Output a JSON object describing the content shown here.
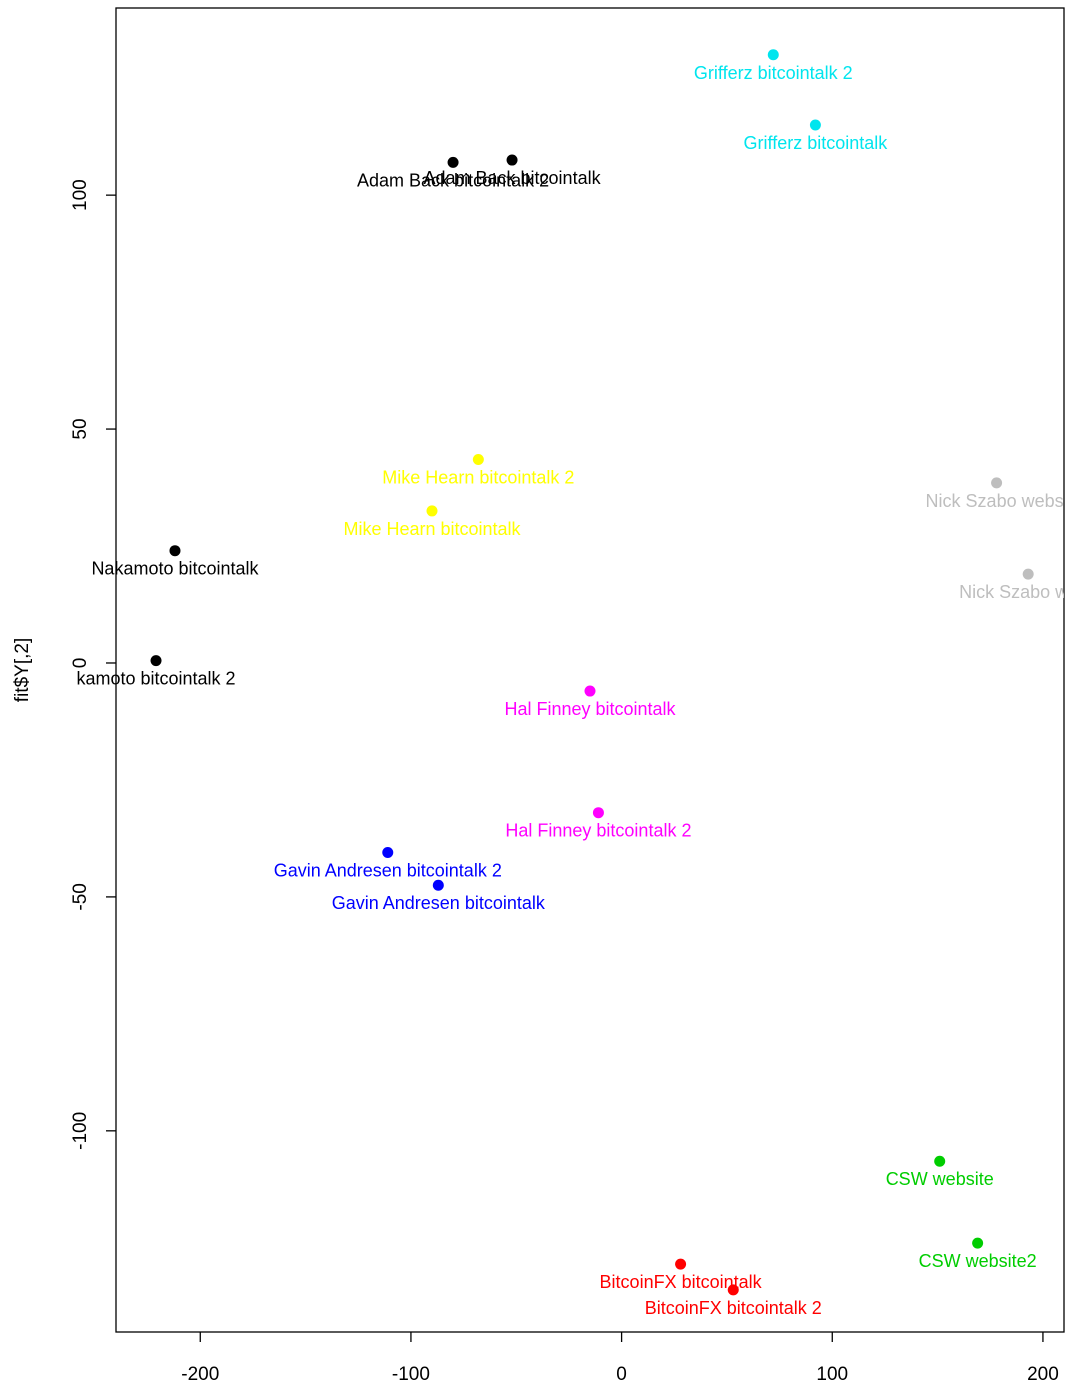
{
  "chart_data": {
    "type": "scatter",
    "title": "",
    "xlabel": "",
    "ylabel": "fit$Y[,2]",
    "xlim": [
      -240,
      210
    ],
    "ylim": [
      -143,
      140
    ],
    "x_ticks": [
      -200,
      -100,
      0,
      100,
      200
    ],
    "y_ticks": [
      -100,
      -50,
      0,
      50,
      100
    ],
    "grid": false,
    "legend": "none",
    "points": [
      {
        "x": 72,
        "y": 130,
        "label": "Grifferz bitcointalk 2",
        "color": "#00e5ee"
      },
      {
        "x": 92,
        "y": 115,
        "label": "Grifferz bitcointalk",
        "color": "#00e5ee"
      },
      {
        "x": -80,
        "y": 107,
        "label": "Adam Back bitcointalk 2",
        "color": "#000000"
      },
      {
        "x": -52,
        "y": 107.5,
        "label": "Adam Back bitcointalk",
        "color": "#000000"
      },
      {
        "x": -68,
        "y": 43.5,
        "label": "Mike Hearn bitcointalk 2",
        "color": "#ffff00"
      },
      {
        "x": -90,
        "y": 32.5,
        "label": "Mike Hearn bitcointalk",
        "color": "#ffff00"
      },
      {
        "x": 178,
        "y": 38.5,
        "label": "Nick Szabo websi",
        "color": "#bebebe"
      },
      {
        "x": 193,
        "y": 19,
        "label": "Nick Szabo webs",
        "color": "#bebebe"
      },
      {
        "x": -212,
        "y": 24,
        "label": "Nakamoto bitcointalk",
        "color": "#000000"
      },
      {
        "x": -221,
        "y": 0.5,
        "label": "kamoto bitcointalk 2",
        "color": "#000000"
      },
      {
        "x": -15,
        "y": -6,
        "label": "Hal Finney bitcointalk",
        "color": "#ff00ff"
      },
      {
        "x": -11,
        "y": -32,
        "label": "Hal Finney bitcointalk 2",
        "color": "#ff00ff"
      },
      {
        "x": -111,
        "y": -40.5,
        "label": "Gavin Andresen bitcointalk 2",
        "color": "#0000ff"
      },
      {
        "x": -87,
        "y": -47.5,
        "label": "Gavin Andresen bitcointalk",
        "color": "#0000ff"
      },
      {
        "x": 151,
        "y": -106.5,
        "label": "CSW website",
        "color": "#00cd00"
      },
      {
        "x": 169,
        "y": -124,
        "label": "CSW website2",
        "color": "#00cd00"
      },
      {
        "x": 28,
        "y": -128.5,
        "label": "BitcoinFX bitcointalk",
        "color": "#ff0000"
      },
      {
        "x": 53,
        "y": -134,
        "label": "BitcoinFX bitcointalk 2",
        "color": "#ff0000"
      }
    ]
  }
}
